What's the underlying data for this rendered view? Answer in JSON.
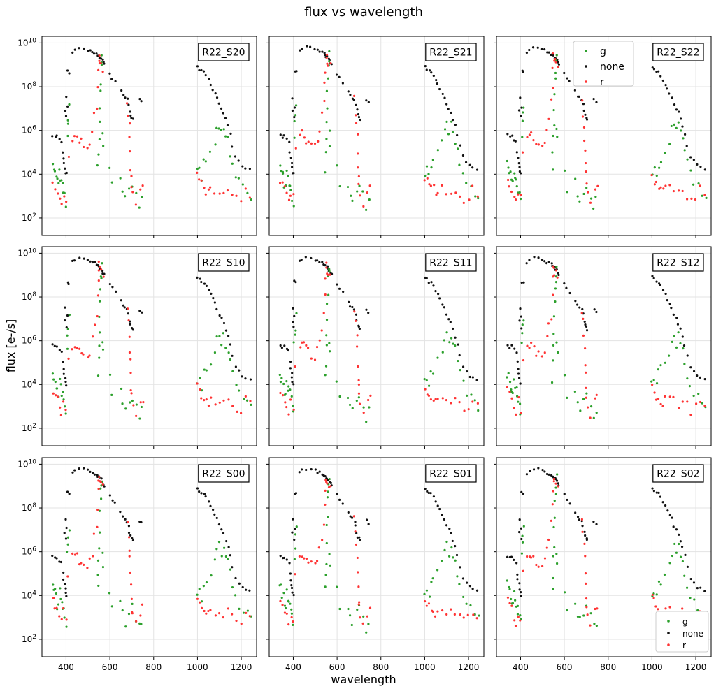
{
  "figure": {
    "title": "flux vs wavelength",
    "xlabel": "wavelength",
    "ylabel": "flux [e-/s]"
  },
  "colors": {
    "g": "#2ca02c",
    "none": "#111111",
    "r": "#ff3333"
  },
  "chart_data": {
    "type": "scatter",
    "xlim": [
      290,
      1270
    ],
    "ylim_log10": [
      1.2,
      10.3
    ],
    "y_scale": "log",
    "xticks": [
      400,
      600,
      800,
      1000,
      1200
    ],
    "yticks": [
      "10^2",
      "10^4",
      "10^6",
      "10^8",
      "10^10"
    ],
    "grid": true,
    "legend_entries": [
      "g",
      "none",
      "r"
    ],
    "panels": [
      {
        "name": "R22_S20",
        "legend": null
      },
      {
        "name": "R22_S21",
        "legend": null
      },
      {
        "name": "R22_S22",
        "legend": "upper-center"
      },
      {
        "name": "R22_S10",
        "legend": null
      },
      {
        "name": "R22_S11",
        "legend": null
      },
      {
        "name": "R22_S12",
        "legend": null
      },
      {
        "name": "R22_S00",
        "legend": null
      },
      {
        "name": "R22_S01",
        "legend": null
      },
      {
        "name": "R22_S02",
        "legend": "lower-right"
      }
    ],
    "series": [
      {
        "name": "none",
        "points": [
          [
            340,
            5.8
          ],
          [
            350,
            5.7
          ],
          [
            360,
            5.75
          ],
          [
            370,
            5.6
          ],
          [
            380,
            5.5
          ],
          [
            385,
            5.0
          ],
          [
            388,
            4.7
          ],
          [
            392,
            4.5
          ],
          [
            396,
            4.3
          ],
          [
            398,
            4.1
          ],
          [
            400,
            4.0
          ],
          [
            395,
            6.9
          ],
          [
            402,
            6.6
          ],
          [
            398,
            7.5
          ],
          [
            405,
            7.1
          ],
          [
            407,
            8.7
          ],
          [
            412,
            8.65
          ],
          [
            430,
            9.6
          ],
          [
            440,
            9.7
          ],
          [
            460,
            9.8
          ],
          [
            480,
            9.78
          ],
          [
            500,
            9.7
          ],
          [
            510,
            9.65
          ],
          [
            520,
            9.6
          ],
          [
            530,
            9.55
          ],
          [
            540,
            9.5
          ],
          [
            545,
            9.45
          ],
          [
            550,
            9.4
          ],
          [
            555,
            9.35
          ],
          [
            560,
            9.3
          ],
          [
            565,
            9.2
          ],
          [
            570,
            9.1
          ],
          [
            575,
            9.0
          ],
          [
            600,
            8.6
          ],
          [
            610,
            8.4
          ],
          [
            625,
            8.2
          ],
          [
            650,
            7.8
          ],
          [
            660,
            7.6
          ],
          [
            670,
            7.5
          ],
          [
            680,
            7.4
          ],
          [
            685,
            7.2
          ],
          [
            690,
            6.9
          ],
          [
            695,
            6.7
          ],
          [
            700,
            6.6
          ],
          [
            705,
            6.5
          ],
          [
            735,
            7.4
          ],
          [
            745,
            7.3
          ],
          [
            1000,
            8.9
          ],
          [
            1010,
            8.8
          ],
          [
            1020,
            8.7
          ],
          [
            1030,
            8.65
          ],
          [
            1040,
            8.5
          ],
          [
            1050,
            8.3
          ],
          [
            1060,
            8.1
          ],
          [
            1070,
            7.9
          ],
          [
            1080,
            7.7
          ],
          [
            1090,
            7.5
          ],
          [
            1100,
            7.2
          ],
          [
            1110,
            7.0
          ],
          [
            1120,
            6.8
          ],
          [
            1130,
            6.5
          ],
          [
            1140,
            6.2
          ],
          [
            1150,
            5.8
          ],
          [
            1160,
            5.3
          ],
          [
            1175,
            4.8
          ],
          [
            1190,
            4.6
          ],
          [
            1205,
            4.4
          ],
          [
            1220,
            4.3
          ],
          [
            1240,
            4.2
          ]
        ]
      },
      {
        "name": "g",
        "points": [
          [
            340,
            4.5
          ],
          [
            345,
            4.3
          ],
          [
            350,
            4.1
          ],
          [
            355,
            3.9
          ],
          [
            360,
            3.6
          ],
          [
            365,
            3.5
          ],
          [
            370,
            4.2
          ],
          [
            375,
            3.8
          ],
          [
            380,
            3.7
          ],
          [
            385,
            3.6
          ],
          [
            390,
            3.3
          ],
          [
            395,
            3.0
          ],
          [
            400,
            2.7
          ],
          [
            405,
            5.8
          ],
          [
            408,
            6.3
          ],
          [
            410,
            6.6
          ],
          [
            415,
            7.1
          ],
          [
            545,
            4.3
          ],
          [
            548,
            5.0
          ],
          [
            550,
            5.6
          ],
          [
            552,
            6.2
          ],
          [
            554,
            7.0
          ],
          [
            556,
            7.7
          ],
          [
            558,
            8.3
          ],
          [
            560,
            8.8
          ],
          [
            562,
            9.1
          ],
          [
            564,
            9.4
          ],
          [
            566,
            6.0
          ],
          [
            568,
            5.5
          ],
          [
            600,
            4.3
          ],
          [
            610,
            3.4
          ],
          [
            650,
            3.6
          ],
          [
            660,
            3.1
          ],
          [
            670,
            2.8
          ],
          [
            690,
            3.2
          ],
          [
            700,
            3.4
          ],
          [
            720,
            3.0
          ],
          [
            735,
            2.5
          ],
          [
            745,
            2.8
          ],
          [
            1000,
            4.1
          ],
          [
            1010,
            4.3
          ],
          [
            1020,
            3.9
          ],
          [
            1030,
            4.5
          ],
          [
            1040,
            4.7
          ],
          [
            1060,
            5.0
          ],
          [
            1080,
            5.5
          ],
          [
            1090,
            6.0
          ],
          [
            1100,
            6.3
          ],
          [
            1110,
            5.9
          ],
          [
            1120,
            6.2
          ],
          [
            1130,
            5.8
          ],
          [
            1140,
            5.6
          ],
          [
            1150,
            5.0
          ],
          [
            1160,
            4.5
          ],
          [
            1175,
            4.0
          ],
          [
            1190,
            3.6
          ],
          [
            1210,
            3.4
          ],
          [
            1230,
            3.1
          ],
          [
            1245,
            2.9
          ]
        ]
      },
      {
        "name": "r",
        "points": [
          [
            340,
            3.7
          ],
          [
            350,
            3.5
          ],
          [
            360,
            3.3
          ],
          [
            370,
            3.0
          ],
          [
            380,
            2.7
          ],
          [
            390,
            3.2
          ],
          [
            400,
            2.9
          ],
          [
            410,
            5.0
          ],
          [
            430,
            5.7
          ],
          [
            440,
            5.8
          ],
          [
            450,
            5.75
          ],
          [
            460,
            5.6
          ],
          [
            470,
            5.5
          ],
          [
            480,
            5.4
          ],
          [
            500,
            5.3
          ],
          [
            510,
            5.5
          ],
          [
            520,
            6.0
          ],
          [
            530,
            6.6
          ],
          [
            540,
            7.2
          ],
          [
            545,
            8.0
          ],
          [
            548,
            8.8
          ],
          [
            550,
            9.3
          ],
          [
            552,
            9.4
          ],
          [
            555,
            9.2
          ],
          [
            560,
            9.1
          ],
          [
            570,
            8.9
          ],
          [
            680,
            7.4
          ],
          [
            685,
            6.8
          ],
          [
            690,
            6.2
          ],
          [
            692,
            5.6
          ],
          [
            694,
            5.0
          ],
          [
            696,
            4.4
          ],
          [
            698,
            3.9
          ],
          [
            700,
            3.4
          ],
          [
            705,
            3.0
          ],
          [
            720,
            2.6
          ],
          [
            740,
            3.2
          ],
          [
            750,
            3.4
          ],
          [
            1000,
            3.9
          ],
          [
            1010,
            3.7
          ],
          [
            1020,
            3.5
          ],
          [
            1030,
            3.4
          ],
          [
            1040,
            3.3
          ],
          [
            1050,
            3.2
          ],
          [
            1060,
            3.35
          ],
          [
            1080,
            3.3
          ],
          [
            1100,
            3.2
          ],
          [
            1120,
            3.15
          ],
          [
            1140,
            3.25
          ],
          [
            1160,
            3.0
          ],
          [
            1180,
            2.8
          ],
          [
            1200,
            2.9
          ],
          [
            1220,
            3.3
          ],
          [
            1240,
            3.1
          ]
        ]
      }
    ]
  }
}
